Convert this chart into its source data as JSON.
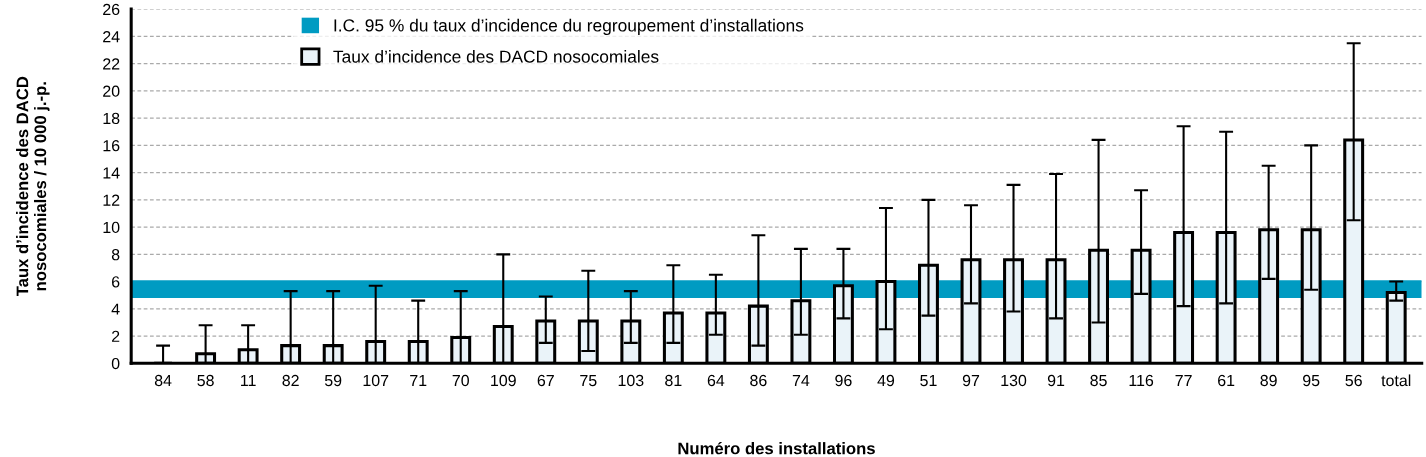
{
  "chart_data": {
    "type": "bar",
    "xlabel": "Numéro des installations",
    "ylabel": "Taux d’incidence des DACD\nnosocomiales / 10 000 j.-p.",
    "categories": [
      "84",
      "58",
      "11",
      "82",
      "59",
      "107",
      "71",
      "70",
      "109",
      "67",
      "75",
      "103",
      "81",
      "64",
      "86",
      "74",
      "96",
      "49",
      "51",
      "97",
      "130",
      "91",
      "85",
      "116",
      "77",
      "61",
      "89",
      "95",
      "56",
      "total"
    ],
    "series": [
      {
        "name": "Taux d’incidence des DACD nosocomiales",
        "color": "#eaf3f9",
        "values": [
          0,
          0.7,
          1.0,
          1.3,
          1.3,
          1.6,
          1.6,
          1.9,
          2.7,
          3.1,
          3.1,
          3.1,
          3.7,
          3.7,
          4.2,
          4.6,
          5.7,
          6.0,
          7.2,
          7.6,
          7.6,
          7.6,
          8.3,
          8.3,
          9.6,
          9.6,
          9.8,
          9.8,
          16.4,
          5.2
        ],
        "errors": [
          [
            0,
            1.3
          ],
          [
            0,
            2.8
          ],
          [
            0,
            2.8
          ],
          [
            0,
            5.3
          ],
          [
            0,
            5.3
          ],
          [
            0,
            5.7
          ],
          [
            0,
            4.6
          ],
          [
            0,
            5.3
          ],
          [
            0,
            8.0
          ],
          [
            1.5,
            4.9
          ],
          [
            0.9,
            6.8
          ],
          [
            1.5,
            5.3
          ],
          [
            1.5,
            7.2
          ],
          [
            2.1,
            6.5
          ],
          [
            1.3,
            9.4
          ],
          [
            2.1,
            8.4
          ],
          [
            3.3,
            8.4
          ],
          [
            2.5,
            11.4
          ],
          [
            3.5,
            12.0
          ],
          [
            4.4,
            11.6
          ],
          [
            3.8,
            13.1
          ],
          [
            3.3,
            13.9
          ],
          [
            3.0,
            16.4
          ],
          [
            5.1,
            12.7
          ],
          [
            4.2,
            17.4
          ],
          [
            4.4,
            17.0
          ],
          [
            6.2,
            14.5
          ],
          [
            5.4,
            16.0
          ],
          [
            10.5,
            23.5
          ],
          [
            4.6,
            6.0
          ]
        ]
      }
    ],
    "bands": [
      {
        "axis": "y",
        "from": 4.8,
        "to": 6.1,
        "label": "I.C. 95 % du taux d’incidence du regroupement d’installations",
        "color": "#009bc2"
      }
    ],
    "ylim": [
      0,
      26
    ],
    "yticks": [
      0,
      2,
      4,
      6,
      8,
      10,
      12,
      14,
      16,
      18,
      20,
      22,
      24,
      26
    ],
    "grid": "y",
    "legend": "top left"
  }
}
